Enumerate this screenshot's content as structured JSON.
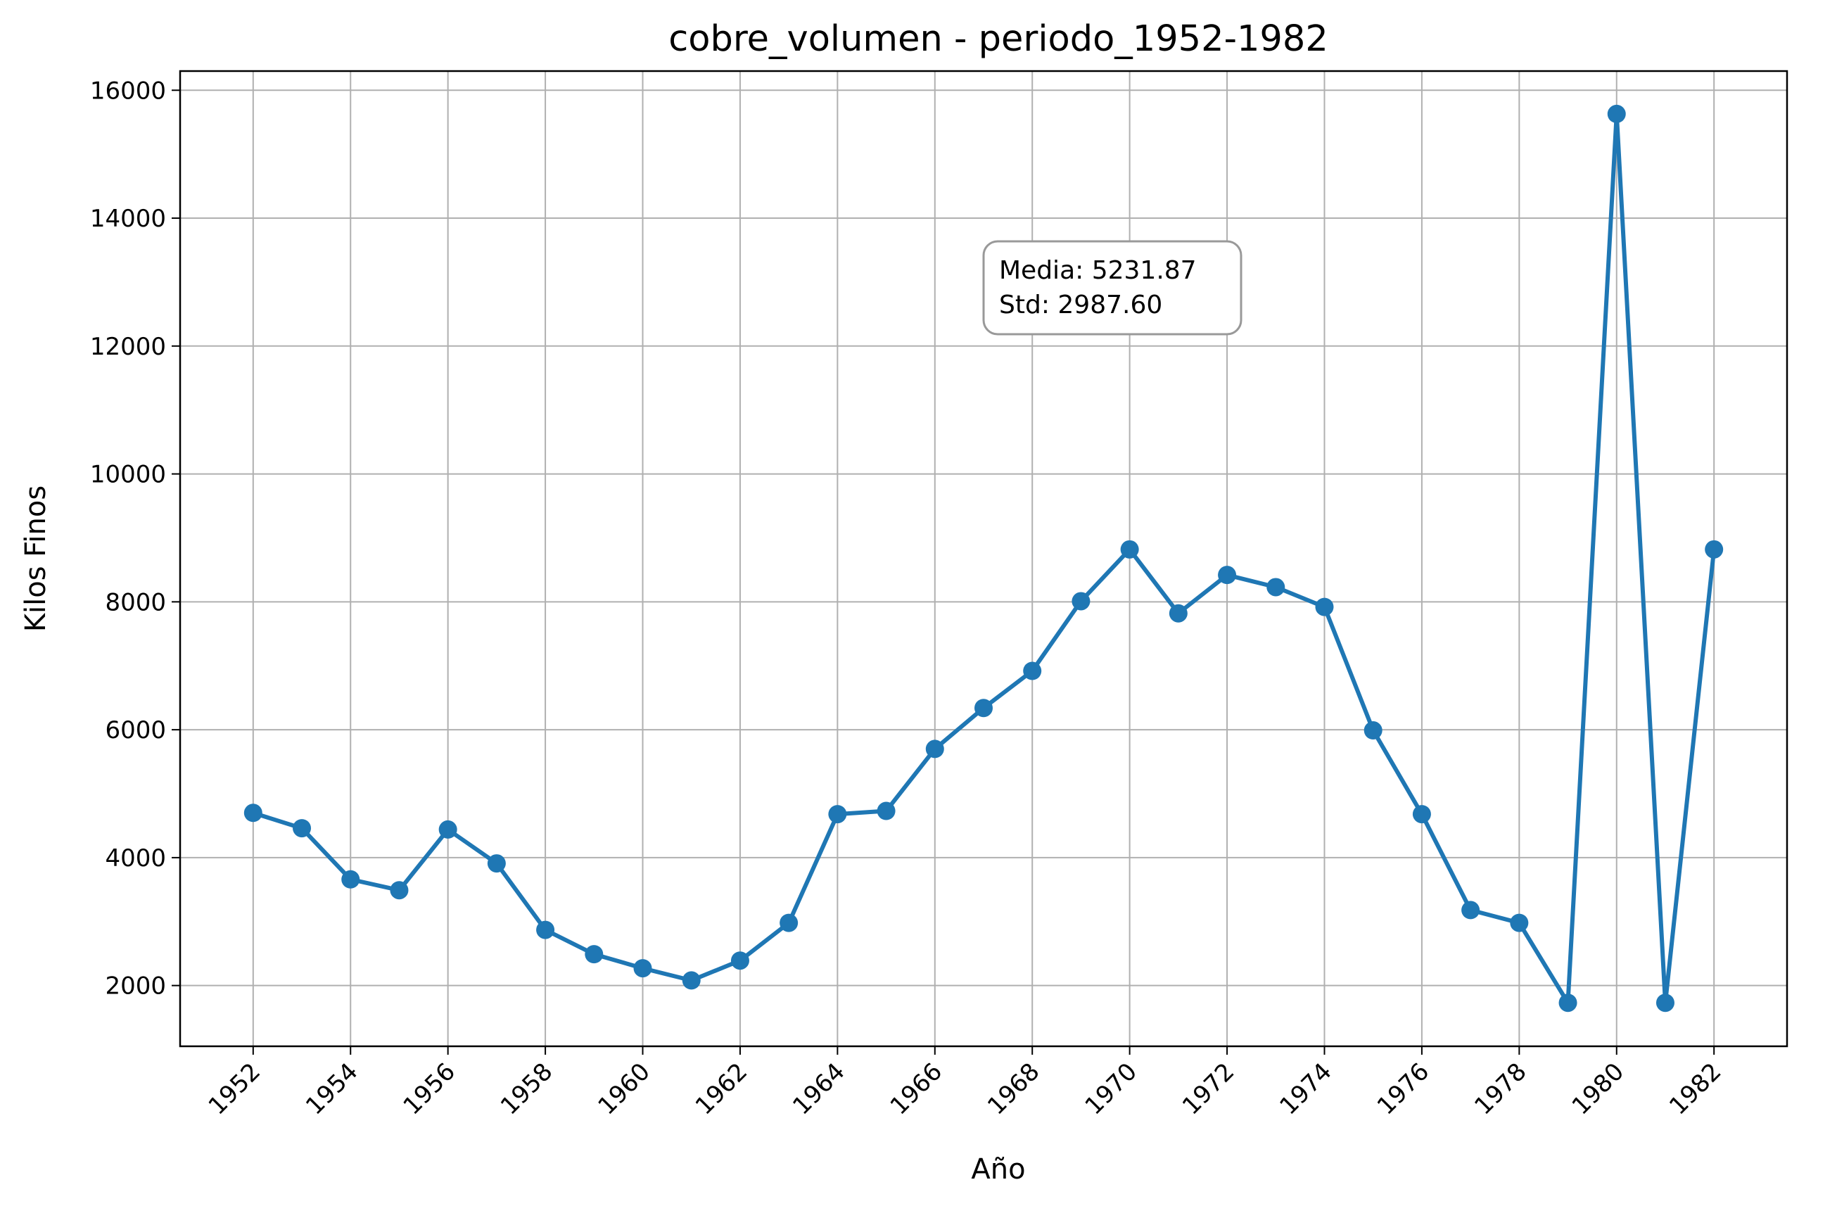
{
  "chart_data": {
    "type": "line",
    "title": "cobre_volumen - periodo_1952-1982",
    "xlabel": "Año",
    "ylabel": "Kilos Finos",
    "xlim": [
      1950.5,
      1983.5
    ],
    "ylim": [
      1050,
      16300
    ],
    "grid": true,
    "x_ticks": [
      "1952",
      "1954",
      "1956",
      "1958",
      "1960",
      "1962",
      "1964",
      "1966",
      "1968",
      "1970",
      "1972",
      "1974",
      "1976",
      "1978",
      "1980",
      "1982"
    ],
    "y_ticks": [
      "2000",
      "4000",
      "6000",
      "8000",
      "10000",
      "12000",
      "14000",
      "16000"
    ],
    "series": [
      {
        "color": "#1f77b4",
        "x": [
          1952,
          1953,
          1954,
          1955,
          1956,
          1957,
          1958,
          1959,
          1960,
          1961,
          1962,
          1963,
          1964,
          1965,
          1966,
          1967,
          1968,
          1969,
          1970,
          1971,
          1972,
          1973,
          1974,
          1975,
          1976,
          1977,
          1978,
          1979,
          1980,
          1981,
          1982
        ],
        "values": [
          4700,
          4460,
          3660,
          3490,
          4440,
          3910,
          2870,
          2490,
          2270,
          2080,
          2390,
          2980,
          4680,
          4730,
          5700,
          6340,
          6920,
          8010,
          8820,
          7820,
          8420,
          8230,
          7920,
          5990,
          4680,
          3180,
          2980,
          1730,
          15630,
          1730,
          8820
        ]
      }
    ],
    "annotation": {
      "lines": [
        "Media: 5231.87",
        "Std: 2987.60"
      ],
      "position": "upper-middle"
    }
  }
}
